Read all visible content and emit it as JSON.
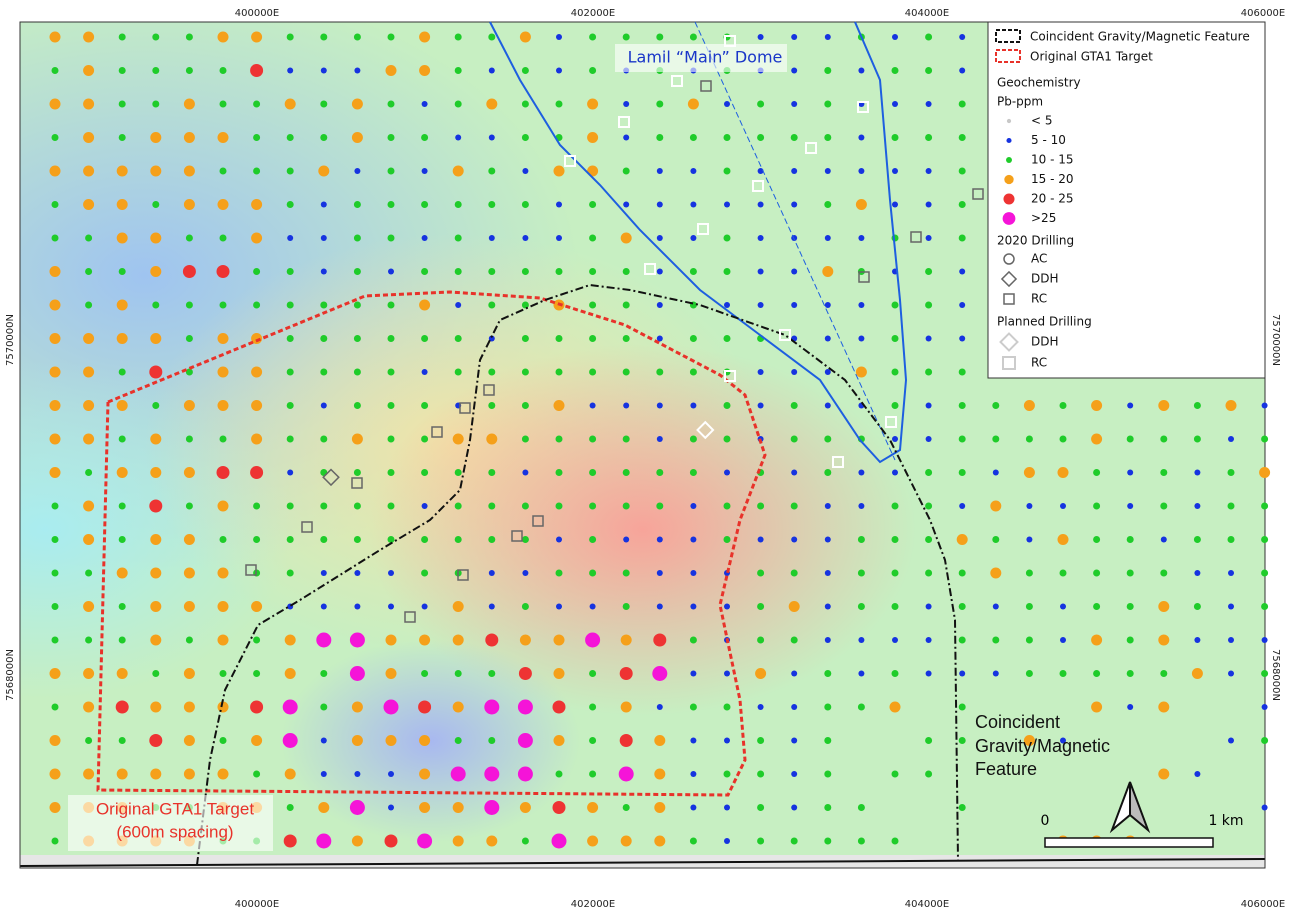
{
  "map": {
    "easting_labels": [
      "400000E",
      "402000E",
      "404000E",
      "406000E"
    ],
    "northing_labels": [
      "7570000N",
      "7568000N"
    ],
    "dome_label": "Lamil “Main” Dome",
    "gta1_label": [
      "Original GTA1 Target",
      "(600m spacing)"
    ],
    "feature_label": [
      "Coincident",
      "Gravity/Magnetic",
      "Feature"
    ]
  },
  "legend": {
    "outlines": [
      "Coincident Gravity/Magnetic Feature",
      "Original GTA1 Target"
    ],
    "geochem_title": "Geochemistry",
    "pb_title": "Pb-ppm",
    "pb_classes": [
      "< 5",
      "5 - 10",
      "10 - 15",
      "15 - 20",
      "20 - 25",
      ">25"
    ],
    "drilling_2020_title": "2020 Drilling",
    "drilling_2020": [
      "AC",
      "DDH",
      "RC"
    ],
    "planned_title": "Planned Drilling",
    "planned": [
      "DDH",
      "RC"
    ]
  },
  "scale_bar": {
    "start": "0",
    "end": "1 km"
  }
}
